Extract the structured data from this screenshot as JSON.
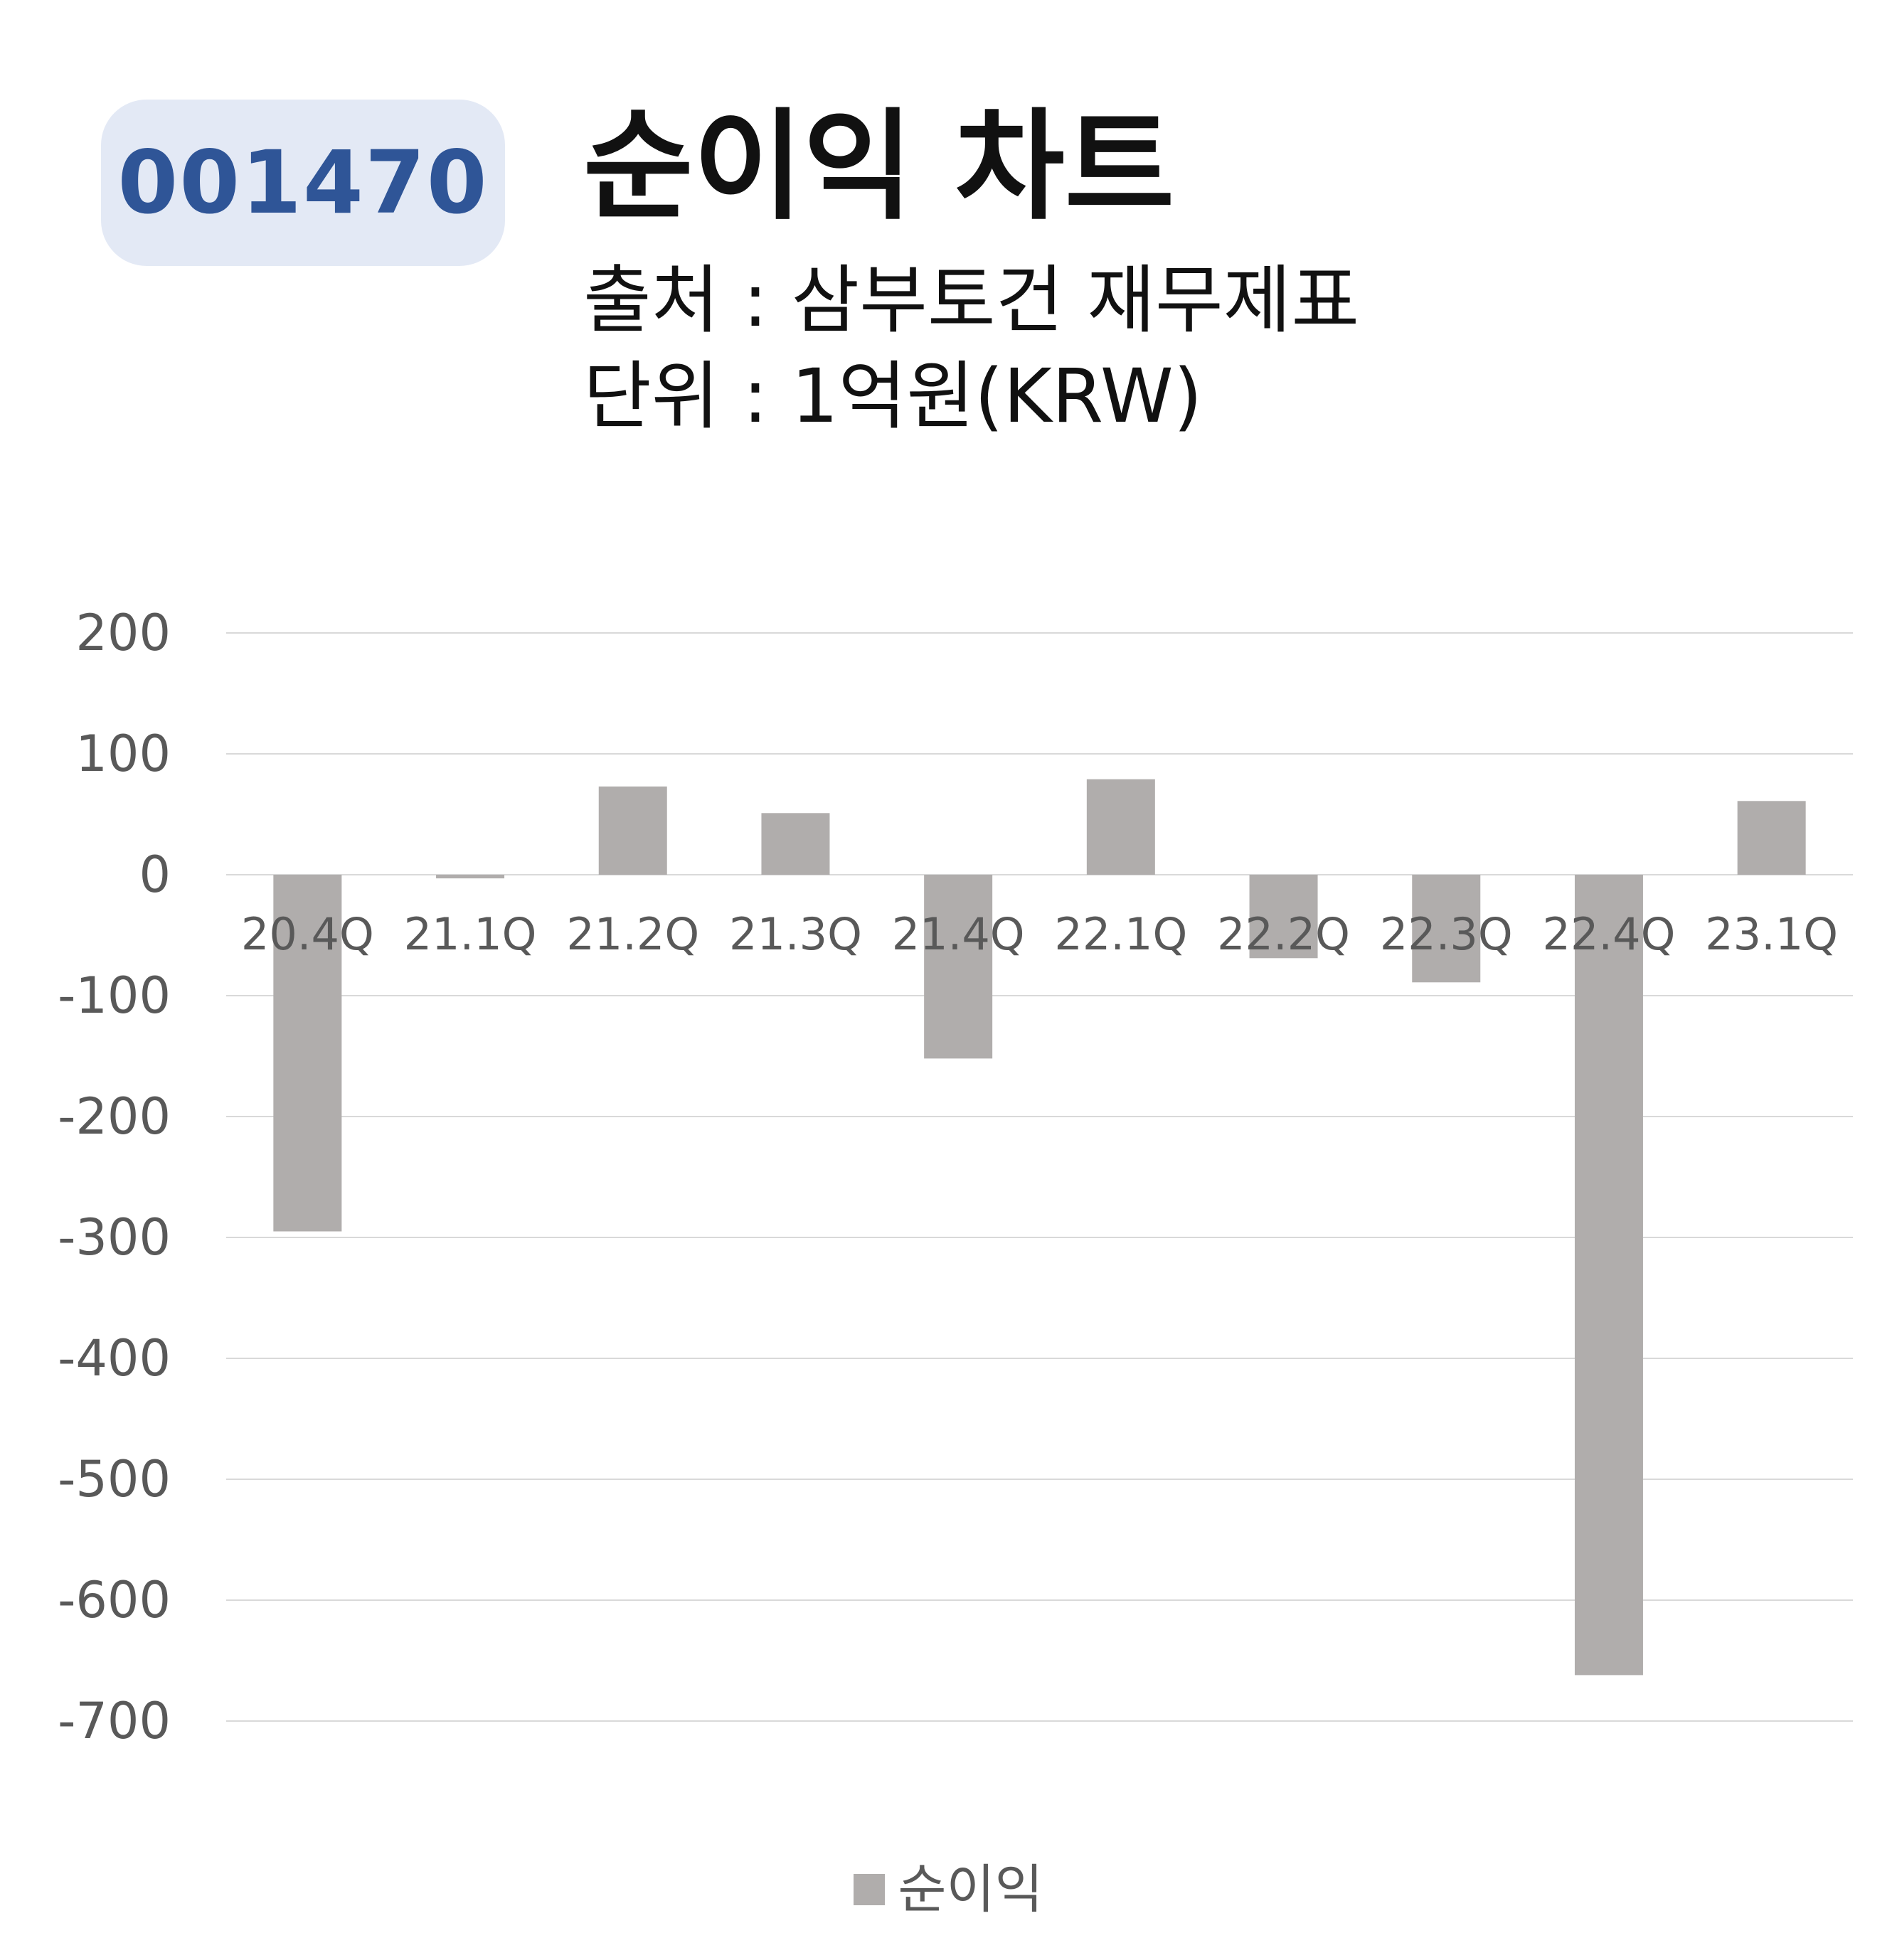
{
  "badge": {
    "code": "001470"
  },
  "header": {
    "title": "순이익 차트",
    "source": "출처 : 삼부토건 재무제표",
    "unit": "단위 : 1억원(KRW)"
  },
  "colors": {
    "bar": "#b0adac",
    "badge_bg": "#e3e9f5",
    "badge_text": "#2f5597",
    "grid": "#d9d9d9",
    "axis_text": "#595959"
  },
  "chart_data": {
    "type": "bar",
    "categories": [
      "20.4Q",
      "21.1Q",
      "21.2Q",
      "21.3Q",
      "21.4Q",
      "22.1Q",
      "22.2Q",
      "22.3Q",
      "22.4Q",
      "23.1Q"
    ],
    "series": [
      {
        "name": "순이익",
        "values": [
          -295,
          -3,
          73,
          51,
          -152,
          79,
          -69,
          -89,
          -662,
          61
        ]
      }
    ],
    "ylim": [
      -700,
      200
    ],
    "yticks": [
      200,
      100,
      0,
      -100,
      -200,
      -300,
      -400,
      -500,
      -600,
      -700
    ],
    "grid": true,
    "legend": "bottom",
    "xlabel": "",
    "ylabel": ""
  }
}
